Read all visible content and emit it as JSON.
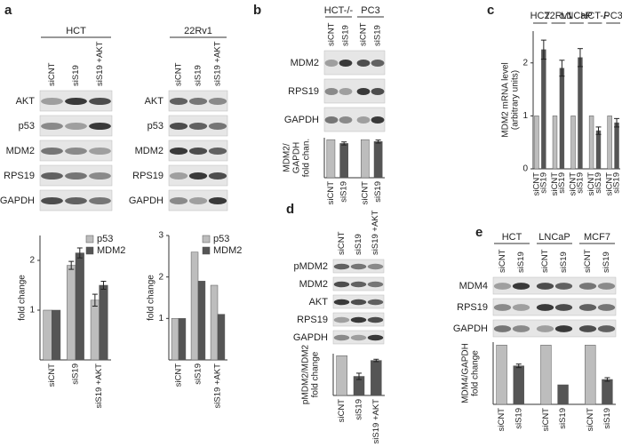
{
  "panel_labels": [
    "a",
    "b",
    "c",
    "d",
    "e"
  ],
  "blots": [
    {
      "groups": [
        {
          "label": "HCT",
          "columns": [
            "siCNT",
            "siS19",
            "siS19 +AKT"
          ]
        }
      ],
      "rows": [
        "AKT",
        "p53",
        "MDM2",
        "RPS19",
        "GAPDH"
      ]
    },
    {
      "groups": [
        {
          "label": "22Rv1",
          "columns": [
            "siCNT",
            "siS19",
            "siS19 +AKT"
          ]
        }
      ],
      "rows": [
        "AKT",
        "p53",
        "MDM2",
        "RPS19",
        "GAPDH"
      ]
    },
    {
      "groups": [
        {
          "label": "HCT-/-",
          "columns": [
            "siCNT",
            "siS19"
          ]
        },
        {
          "label": "PC3",
          "columns": [
            "siCNT",
            "siS19"
          ]
        }
      ],
      "rows": [
        "MDM2",
        "RPS19",
        "GAPDH"
      ]
    },
    {
      "groups": [
        {
          "columns": [
            "siCNT",
            "siS19",
            "siS19 +AKT"
          ]
        }
      ],
      "rows": [
        "pMDM2",
        "MDM2",
        "AKT",
        "RPS19",
        "GAPDH"
      ]
    },
    {
      "groups": [
        {
          "label": "HCT",
          "columns": [
            "siCNT",
            "siS19"
          ]
        },
        {
          "label": "LNCaP",
          "columns": [
            "siCNT",
            "siS19"
          ]
        },
        {
          "label": "MCF7",
          "columns": [
            "siCNT",
            "siS19"
          ]
        }
      ],
      "rows": [
        "MDM4",
        "RPS19",
        "GAPDH"
      ]
    }
  ],
  "chart_data": [
    {
      "type": "bar",
      "y_label": [
        "fold change"
      ],
      "categories": [
        "siCNT",
        "siS19",
        "siS19 +AKT"
      ],
      "series": [
        {
          "name": "p53",
          "color": "#bdbdbd",
          "values": [
            1,
            1.9,
            1.2
          ],
          "errors": [
            null,
            0.08,
            0.12
          ]
        },
        {
          "name": "MDM2",
          "color": "#555555",
          "values": [
            1,
            2.15,
            1.5
          ],
          "errors": [
            null,
            0.1,
            0.08
          ]
        }
      ],
      "ylim": [
        0,
        2.5
      ],
      "yticks": [
        1,
        2
      ]
    },
    {
      "type": "bar",
      "y_label": [
        "fold change"
      ],
      "categories": [
        "siCNT",
        "siS19",
        "siS19 +AKT"
      ],
      "series": [
        {
          "name": "p53",
          "color": "#bdbdbd",
          "values": [
            1,
            2.6,
            1.8
          ]
        },
        {
          "name": "MDM2",
          "color": "#555555",
          "values": [
            1,
            1.9,
            1.1
          ]
        }
      ],
      "ylim": [
        0,
        3
      ],
      "yticks": [
        1,
        2,
        3
      ]
    },
    {
      "type": "bar",
      "y_label": [
        "MDM2/",
        "GAPDH",
        "fold chan."
      ],
      "categories": [
        "siCNT",
        "siS19",
        "siCNT",
        "siS19"
      ],
      "values": [
        1,
        0.9,
        1,
        0.95
      ],
      "errors": [
        null,
        0.04,
        null,
        0.04
      ],
      "colors": [
        "#bdbdbd",
        "#555555",
        "#bdbdbd",
        "#555555"
      ],
      "ylim": [
        0,
        1.05
      ]
    },
    {
      "type": "bar",
      "y_label": [
        "MDM2 mRNA level",
        "(arbitrary units)"
      ],
      "groups": [
        "HCT",
        "22Rv1",
        "LNCaP",
        "HCT-/-",
        "PC3"
      ],
      "categories": [
        "siCNT",
        "siS19",
        "siCNT",
        "siS19",
        "siCNT",
        "siS19",
        "siCNT",
        "siS19",
        "siCNT",
        "siS19"
      ],
      "values": [
        1,
        2.25,
        1,
        1.9,
        1,
        2.1,
        1,
        0.72,
        1,
        0.87
      ],
      "errors": [
        null,
        0.18,
        null,
        0.15,
        null,
        0.17,
        null,
        0.07,
        null,
        0.08
      ],
      "colors": [
        "#bdbdbd",
        "#555555",
        "#bdbdbd",
        "#555555",
        "#bdbdbd",
        "#555555",
        "#bdbdbd",
        "#555555",
        "#bdbdbd",
        "#555555"
      ],
      "ylim": [
        0,
        2.6
      ],
      "yticks": [
        0,
        1,
        2
      ]
    },
    {
      "type": "bar",
      "y_label": [
        "pMDM2/MDM2",
        "fold change"
      ],
      "categories": [
        "siCNT",
        "siS19",
        "siS19 +AKT"
      ],
      "values": [
        1,
        0.48,
        0.88
      ],
      "errors": [
        null,
        0.08,
        0.03
      ],
      "colors": [
        "#bdbdbd",
        "#555555",
        "#555555"
      ],
      "ylim": [
        0,
        1.05
      ]
    },
    {
      "type": "bar",
      "y_label": [
        "MDM4/GAPDH",
        "fold change"
      ],
      "categories": [
        "siCNT",
        "siS19",
        "siCNT",
        "siS19",
        "siCNT",
        "siS19"
      ],
      "values": [
        1,
        0.65,
        1,
        0.33,
        1,
        0.42
      ],
      "errors": [
        null,
        0.03,
        null,
        null,
        null,
        0.03
      ],
      "colors": [
        "#bdbdbd",
        "#555555",
        "#bdbdbd",
        "#555555",
        "#bdbdbd",
        "#555555"
      ],
      "ylim": [
        0,
        1.05
      ]
    }
  ]
}
